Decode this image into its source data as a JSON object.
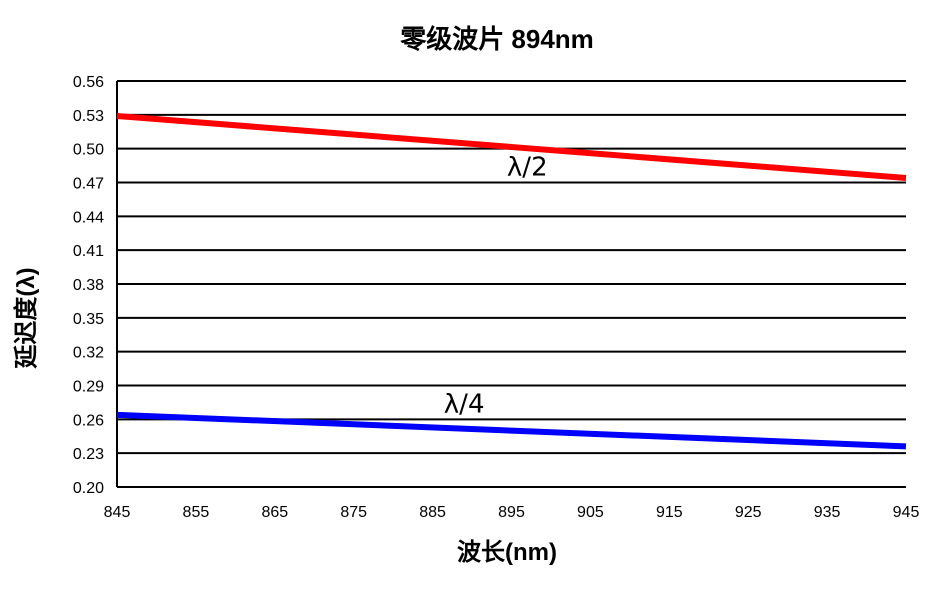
{
  "chart_data": {
    "type": "line",
    "title": "零级波片 894nm",
    "xlabel": "波长(nm)",
    "ylabel": "延迟度(λ)",
    "xlim": [
      845,
      945
    ],
    "ylim": [
      0.2,
      0.56
    ],
    "xticks": [
      "845",
      "855",
      "865",
      "875",
      "885",
      "895",
      "905",
      "915",
      "925",
      "935",
      "945"
    ],
    "yticks": [
      "0.20",
      "0.23",
      "0.26",
      "0.29",
      "0.32",
      "0.35",
      "0.38",
      "0.41",
      "0.44",
      "0.47",
      "0.50",
      "0.53",
      "0.56"
    ],
    "grid": "horizontal",
    "series": [
      {
        "name": "λ/2",
        "color": "#ff0000",
        "x": [
          845,
          945
        ],
        "y": [
          0.529,
          0.474
        ]
      },
      {
        "name": "λ/4",
        "color": "#0000ff",
        "x": [
          845,
          945
        ],
        "y": [
          0.264,
          0.236
        ]
      }
    ],
    "annotations": [
      {
        "text": "λ/2",
        "x": 897,
        "y": 0.485
      },
      {
        "text": "λ/4",
        "x": 889,
        "y": 0.275
      }
    ]
  }
}
